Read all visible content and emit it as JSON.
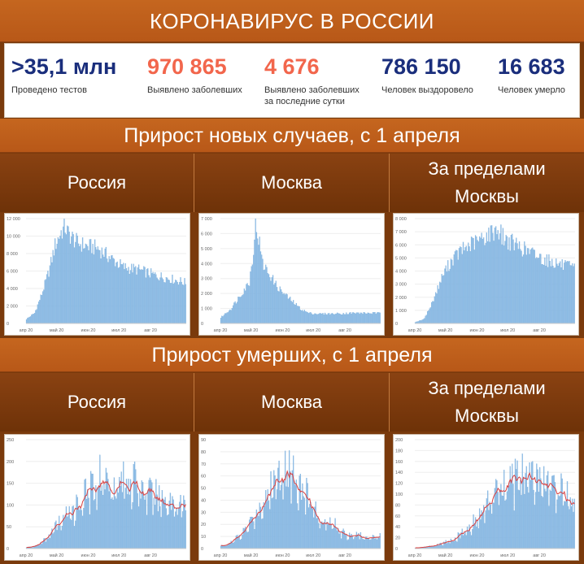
{
  "header": {
    "title": "КОРОНАВИРУС В РОССИИ"
  },
  "stats": [
    {
      "value": ">35,1 млн",
      "label": "Проведено тестов",
      "color": "#1a2e7c"
    },
    {
      "value": "970 865",
      "label": "Выявлено заболевших",
      "color": "#f2664c"
    },
    {
      "value": "4 676",
      "label": "Выявлено заболевших за последние сутки",
      "color": "#f2664c"
    },
    {
      "value": "786 150",
      "label": "Человек выздоровело",
      "color": "#1a2e7c"
    },
    {
      "value": "16 683",
      "label": "Человек умерло",
      "color": "#1a2e7c"
    }
  ],
  "sections": {
    "cases": "Прирост новых случаев, с 1 апреля",
    "deaths": "Прирост умерших, с 1 апреля"
  },
  "regions": {
    "russia": "Россия",
    "moscow": "Москва",
    "outside": "За пределами Москвы",
    "outside_line1": "За пределами",
    "outside_line2": "Москвы"
  },
  "colors": {
    "bar": "#8fbde6",
    "bar_edge": "#5f9bd1",
    "avg_line": "#d94040",
    "grid": "#eeeeee",
    "axis_text": "#666666"
  },
  "chart_data": [
    {
      "id": "cases-russia",
      "type": "bar",
      "region": "Россия",
      "x_ticks": [
        "апр 20",
        "май 20",
        "июн 20",
        "июл 20",
        "авг 20"
      ],
      "y_ticks": [
        "0",
        "2 000",
        "4 000",
        "6 000",
        "8 000",
        "10 000",
        "12 000"
      ],
      "ylim": [
        0,
        12000
      ],
      "anchors": [
        [
          0,
          500
        ],
        [
          8,
          1200
        ],
        [
          15,
          3400
        ],
        [
          22,
          6000
        ],
        [
          28,
          9000
        ],
        [
          34,
          10600
        ],
        [
          38,
          11100
        ],
        [
          41,
          10400
        ],
        [
          50,
          9300
        ],
        [
          60,
          8900
        ],
        [
          70,
          8700
        ],
        [
          80,
          7800
        ],
        [
          88,
          7100
        ],
        [
          95,
          6500
        ],
        [
          110,
          6200
        ],
        [
          125,
          5600
        ],
        [
          140,
          5200
        ],
        [
          150,
          4900
        ],
        [
          156,
          4700
        ]
      ],
      "days": 157,
      "moving_average": false
    },
    {
      "id": "cases-moscow",
      "type": "bar",
      "region": "Москва",
      "x_ticks": [
        "апр 20",
        "май 20",
        "июн 20",
        "июл 20",
        "авг 20"
      ],
      "y_ticks": [
        "0",
        "1 000",
        "2 000",
        "3 000",
        "4 000",
        "5 000",
        "6 000",
        "7 000"
      ],
      "ylim": [
        0,
        7000
      ],
      "anchors": [
        [
          0,
          400
        ],
        [
          10,
          1000
        ],
        [
          20,
          2000
        ],
        [
          28,
          2800
        ],
        [
          32,
          5000
        ],
        [
          34,
          6600
        ],
        [
          37,
          5800
        ],
        [
          41,
          4000
        ],
        [
          48,
          3300
        ],
        [
          55,
          2500
        ],
        [
          62,
          2000
        ],
        [
          70,
          1500
        ],
        [
          78,
          1000
        ],
        [
          86,
          700
        ],
        [
          95,
          650
        ],
        [
          110,
          650
        ],
        [
          130,
          700
        ],
        [
          156,
          690
        ]
      ],
      "days": 157,
      "moving_average": false
    },
    {
      "id": "cases-outside",
      "type": "bar",
      "region": "За пределами Москвы",
      "x_ticks": [
        "апр 20",
        "май 20",
        "июн 20",
        "июл 20",
        "авг 20"
      ],
      "y_ticks": [
        "0",
        "1 000",
        "2 000",
        "3 000",
        "4 000",
        "5 000",
        "6 000",
        "7 000",
        "8 000"
      ],
      "ylim": [
        0,
        8000
      ],
      "anchors": [
        [
          0,
          100
        ],
        [
          8,
          300
        ],
        [
          15,
          1300
        ],
        [
          22,
          2700
        ],
        [
          28,
          3900
        ],
        [
          36,
          4900
        ],
        [
          45,
          5600
        ],
        [
          55,
          6100
        ],
        [
          65,
          6500
        ],
        [
          75,
          7000
        ],
        [
          80,
          7300
        ],
        [
          88,
          6500
        ],
        [
          100,
          6000
        ],
        [
          112,
          5500
        ],
        [
          125,
          5000
        ],
        [
          140,
          4600
        ],
        [
          156,
          4200
        ]
      ],
      "days": 157,
      "moving_average": false
    },
    {
      "id": "deaths-russia",
      "type": "bar",
      "region": "Россия",
      "x_ticks": [
        "апр 20",
        "май 20",
        "июн 20",
        "июл 20",
        "авг 20"
      ],
      "y_ticks": [
        "0",
        "50",
        "100",
        "150",
        "200",
        "250"
      ],
      "ylim": [
        0,
        250
      ],
      "anchors": [
        [
          0,
          2
        ],
        [
          8,
          5
        ],
        [
          15,
          14
        ],
        [
          22,
          30
        ],
        [
          30,
          55
        ],
        [
          40,
          80
        ],
        [
          50,
          105
        ],
        [
          60,
          130
        ],
        [
          68,
          155
        ],
        [
          72,
          175
        ],
        [
          80,
          160
        ],
        [
          90,
          155
        ],
        [
          100,
          165
        ],
        [
          110,
          150
        ],
        [
          120,
          130
        ],
        [
          130,
          120
        ],
        [
          140,
          115
        ],
        [
          150,
          105
        ],
        [
          156,
          100
        ]
      ],
      "days": 157,
      "moving_average": true
    },
    {
      "id": "deaths-moscow",
      "type": "bar",
      "region": "Москва",
      "x_ticks": [
        "апр 20",
        "май 20",
        "июн 20",
        "июл 20",
        "авг 20"
      ],
      "y_ticks": [
        "0",
        "10",
        "20",
        "30",
        "40",
        "50",
        "60",
        "70",
        "80",
        "90"
      ],
      "ylim": [
        0,
        90
      ],
      "anchors": [
        [
          0,
          2
        ],
        [
          10,
          5
        ],
        [
          20,
          12
        ],
        [
          28,
          20
        ],
        [
          35,
          32
        ],
        [
          42,
          42
        ],
        [
          52,
          55
        ],
        [
          60,
          70
        ],
        [
          65,
          73
        ],
        [
          72,
          62
        ],
        [
          80,
          50
        ],
        [
          88,
          42
        ],
        [
          94,
          30
        ],
        [
          100,
          18
        ],
        [
          106,
          25
        ],
        [
          110,
          22
        ],
        [
          118,
          15
        ],
        [
          130,
          11
        ],
        [
          145,
          10
        ],
        [
          156,
          10
        ]
      ],
      "days": 157,
      "moving_average": true
    },
    {
      "id": "deaths-outside",
      "type": "bar",
      "region": "За пределами Москвы",
      "x_ticks": [
        "апр 20",
        "май 20",
        "июн 20",
        "июл 20",
        "авг 20"
      ],
      "y_ticks": [
        "0",
        "20",
        "40",
        "60",
        "80",
        "100",
        "120",
        "140",
        "160",
        "180",
        "200"
      ],
      "ylim": [
        0,
        200
      ],
      "anchors": [
        [
          0,
          1
        ],
        [
          10,
          3
        ],
        [
          20,
          6
        ],
        [
          30,
          12
        ],
        [
          40,
          20
        ],
        [
          50,
          35
        ],
        [
          60,
          55
        ],
        [
          70,
          80
        ],
        [
          80,
          110
        ],
        [
          90,
          120
        ],
        [
          100,
          130
        ],
        [
          110,
          140
        ],
        [
          115,
          135
        ],
        [
          125,
          125
        ],
        [
          135,
          115
        ],
        [
          145,
          105
        ],
        [
          156,
          95
        ]
      ],
      "days": 157,
      "moving_average": true
    }
  ]
}
